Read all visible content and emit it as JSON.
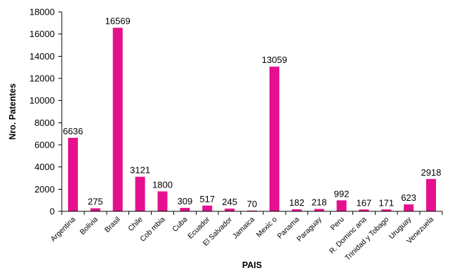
{
  "chart_data": {
    "type": "bar",
    "title": "",
    "xlabel": "PAIS",
    "ylabel": "Nro. Patentes",
    "ylim": [
      0,
      18000
    ],
    "yticks": [
      0,
      2000,
      4000,
      6000,
      8000,
      10000,
      12000,
      14000,
      16000,
      18000
    ],
    "grid": false,
    "legend": "none",
    "bar_color": "#e5108d",
    "categories": [
      "Argentina",
      "Bolivia",
      "Brasil",
      "Chile",
      "Cob mbia",
      "Cuba",
      "Ecuador",
      "El Salvador",
      "Jamaica",
      "Mexic o",
      "Panama",
      "Paraguay",
      "Peru",
      "R. Dominc ana",
      "Trinidad y Tobago",
      "Uruguay",
      "Venezuela"
    ],
    "values": [
      6636,
      275,
      16569,
      3121,
      1800,
      309,
      517,
      245,
      70,
      13059,
      182,
      218,
      992,
      167,
      171,
      623,
      2918
    ]
  }
}
